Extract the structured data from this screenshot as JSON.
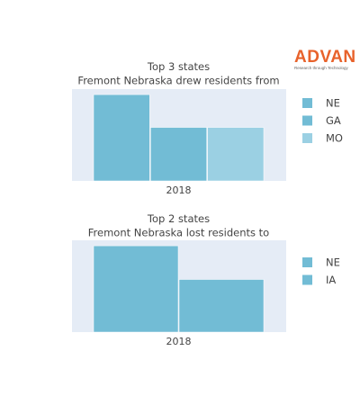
{
  "brand": {
    "name": "ADVAN",
    "tagline": "Research through Technology",
    "color": "#e8622b"
  },
  "chart_data": [
    {
      "type": "bar",
      "title_lines": [
        "Top 3 states",
        "Fremont Nebraska drew residents from"
      ],
      "categories": [
        "2018"
      ],
      "series": [
        {
          "name": "NE",
          "values": [
            100
          ],
          "color": "#72bcd5"
        },
        {
          "name": "GA",
          "values": [
            62
          ],
          "color": "#72bcd5"
        },
        {
          "name": "MO",
          "values": [
            62
          ],
          "color": "#9bd0e3"
        }
      ],
      "ylim": [
        0,
        100
      ],
      "plot_bg": "#e5ecf6",
      "legend_position": "right"
    },
    {
      "type": "bar",
      "title_lines": [
        "Top 2 states",
        "Fremont Nebraska lost residents to"
      ],
      "categories": [
        "2018"
      ],
      "series": [
        {
          "name": "NE",
          "values": [
            100
          ],
          "color": "#72bcd5"
        },
        {
          "name": "IA",
          "values": [
            61
          ],
          "color": "#72bcd5"
        }
      ],
      "ylim": [
        0,
        100
      ],
      "plot_bg": "#e5ecf6",
      "legend_position": "right"
    }
  ]
}
